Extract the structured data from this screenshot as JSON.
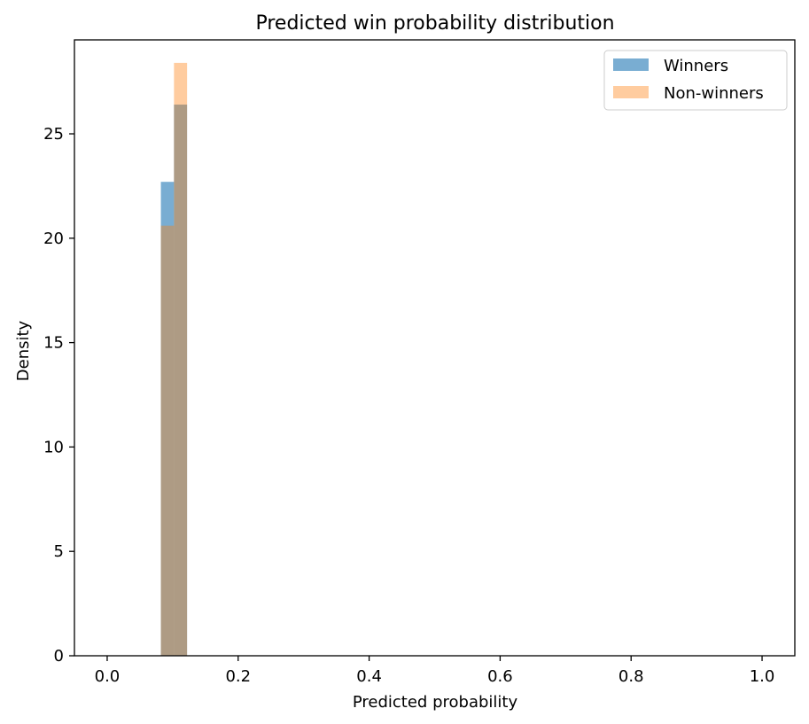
{
  "chart_data": {
    "type": "bar",
    "title": "Predicted win probability distribution",
    "xlabel": "Predicted probability",
    "ylabel": "Density",
    "xlim": [
      -0.05,
      1.05
    ],
    "ylim": [
      0,
      29.5
    ],
    "xticks": [
      0.0,
      0.2,
      0.4,
      0.6,
      0.8,
      1.0
    ],
    "xtick_labels": [
      "0.0",
      "0.2",
      "0.4",
      "0.6",
      "0.8",
      "1.0"
    ],
    "yticks": [
      0,
      5,
      10,
      15,
      20,
      25
    ],
    "ytick_labels": [
      "0",
      "5",
      "10",
      "15",
      "20",
      "25"
    ],
    "grid": false,
    "legend_position": "top-right",
    "series": [
      {
        "name": "Winners",
        "color": "#1f77b4",
        "opacity": 0.6,
        "bins": [
          {
            "x0": 0.082,
            "x1": 0.102,
            "value": 22.7
          },
          {
            "x0": 0.102,
            "x1": 0.122,
            "value": 26.4
          }
        ]
      },
      {
        "name": "Non-winners",
        "color": "#ff7f0e",
        "opacity": 0.4,
        "bins": [
          {
            "x0": 0.082,
            "x1": 0.102,
            "value": 20.6
          },
          {
            "x0": 0.102,
            "x1": 0.122,
            "value": 28.4
          }
        ]
      }
    ]
  }
}
